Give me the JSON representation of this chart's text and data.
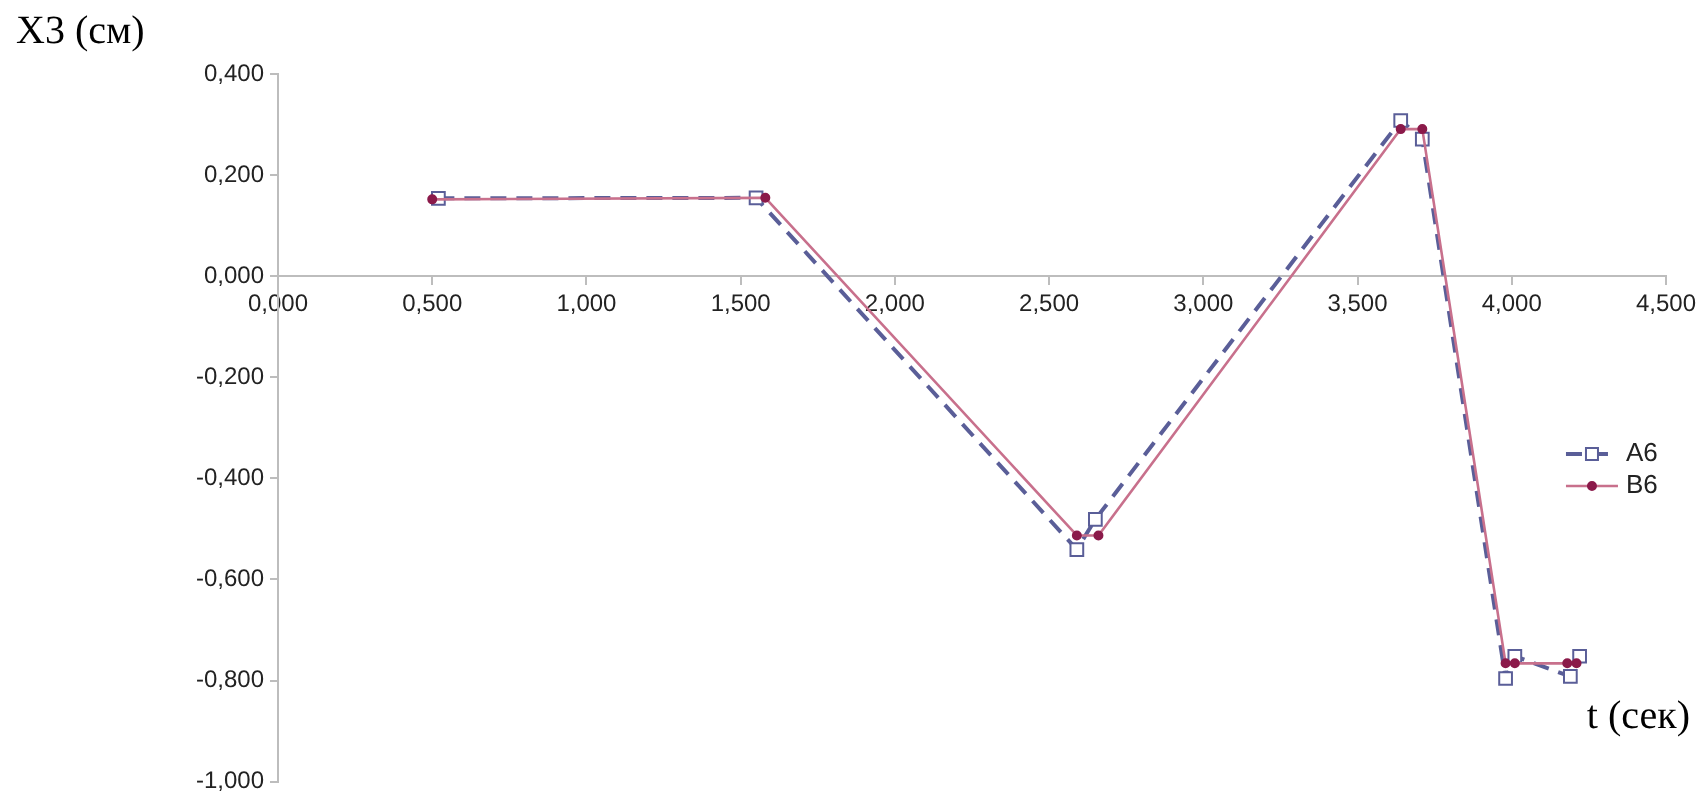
{
  "chart_data": {
    "type": "line",
    "xlabel": "t (сек)",
    "ylabel": "X3 (см)",
    "xlim": [
      0,
      4.5
    ],
    "xticks": [
      {
        "value": 0,
        "label": "0,000"
      },
      {
        "value": 0.5,
        "label": "0,500"
      },
      {
        "value": 1,
        "label": "1,000"
      },
      {
        "value": 1.5,
        "label": "1,500"
      },
      {
        "value": 2,
        "label": "2,000"
      },
      {
        "value": 2.5,
        "label": "2,500"
      },
      {
        "value": 3,
        "label": "3,000"
      },
      {
        "value": 3.5,
        "label": "3,500"
      },
      {
        "value": 4,
        "label": "4,000"
      },
      {
        "value": 4.5,
        "label": "4,500"
      }
    ],
    "ylim": [
      -1,
      0.4
    ],
    "yticks": [
      {
        "value": -1,
        "label": "-1,000"
      },
      {
        "value": -0.8,
        "label": "-0,800"
      },
      {
        "value": -0.6,
        "label": "-0,600"
      },
      {
        "value": -0.4,
        "label": "-0,400"
      },
      {
        "value": -0.2,
        "label": "-0,200"
      },
      {
        "value": 0,
        "label": "0,000"
      },
      {
        "value": 0.2,
        "label": "0,200"
      },
      {
        "value": 0.4,
        "label": "0,400"
      }
    ],
    "series": [
      {
        "name": "A6",
        "color": "#5a5e98",
        "marker": "square",
        "line_style": "dashed",
        "x": [
          0.52,
          1.55,
          2.59,
          2.65,
          3.64,
          3.71,
          3.98,
          4.01,
          4.19,
          4.22
        ],
        "values": [
          0.154,
          0.155,
          -0.541,
          -0.481,
          0.308,
          0.271,
          -0.796,
          -0.752,
          -0.792,
          -0.752
        ]
      },
      {
        "name": "B6",
        "color": "#c8708c",
        "marker": "circle",
        "line_style": "solid",
        "x": [
          0.5,
          1.58,
          2.59,
          2.66,
          3.64,
          3.71,
          3.98,
          4.01,
          4.18,
          4.21
        ],
        "values": [
          0.152,
          0.155,
          -0.513,
          -0.513,
          0.291,
          0.291,
          -0.766,
          -0.766,
          -0.766,
          -0.766
        ]
      }
    ],
    "grid": false,
    "legend": "right"
  }
}
